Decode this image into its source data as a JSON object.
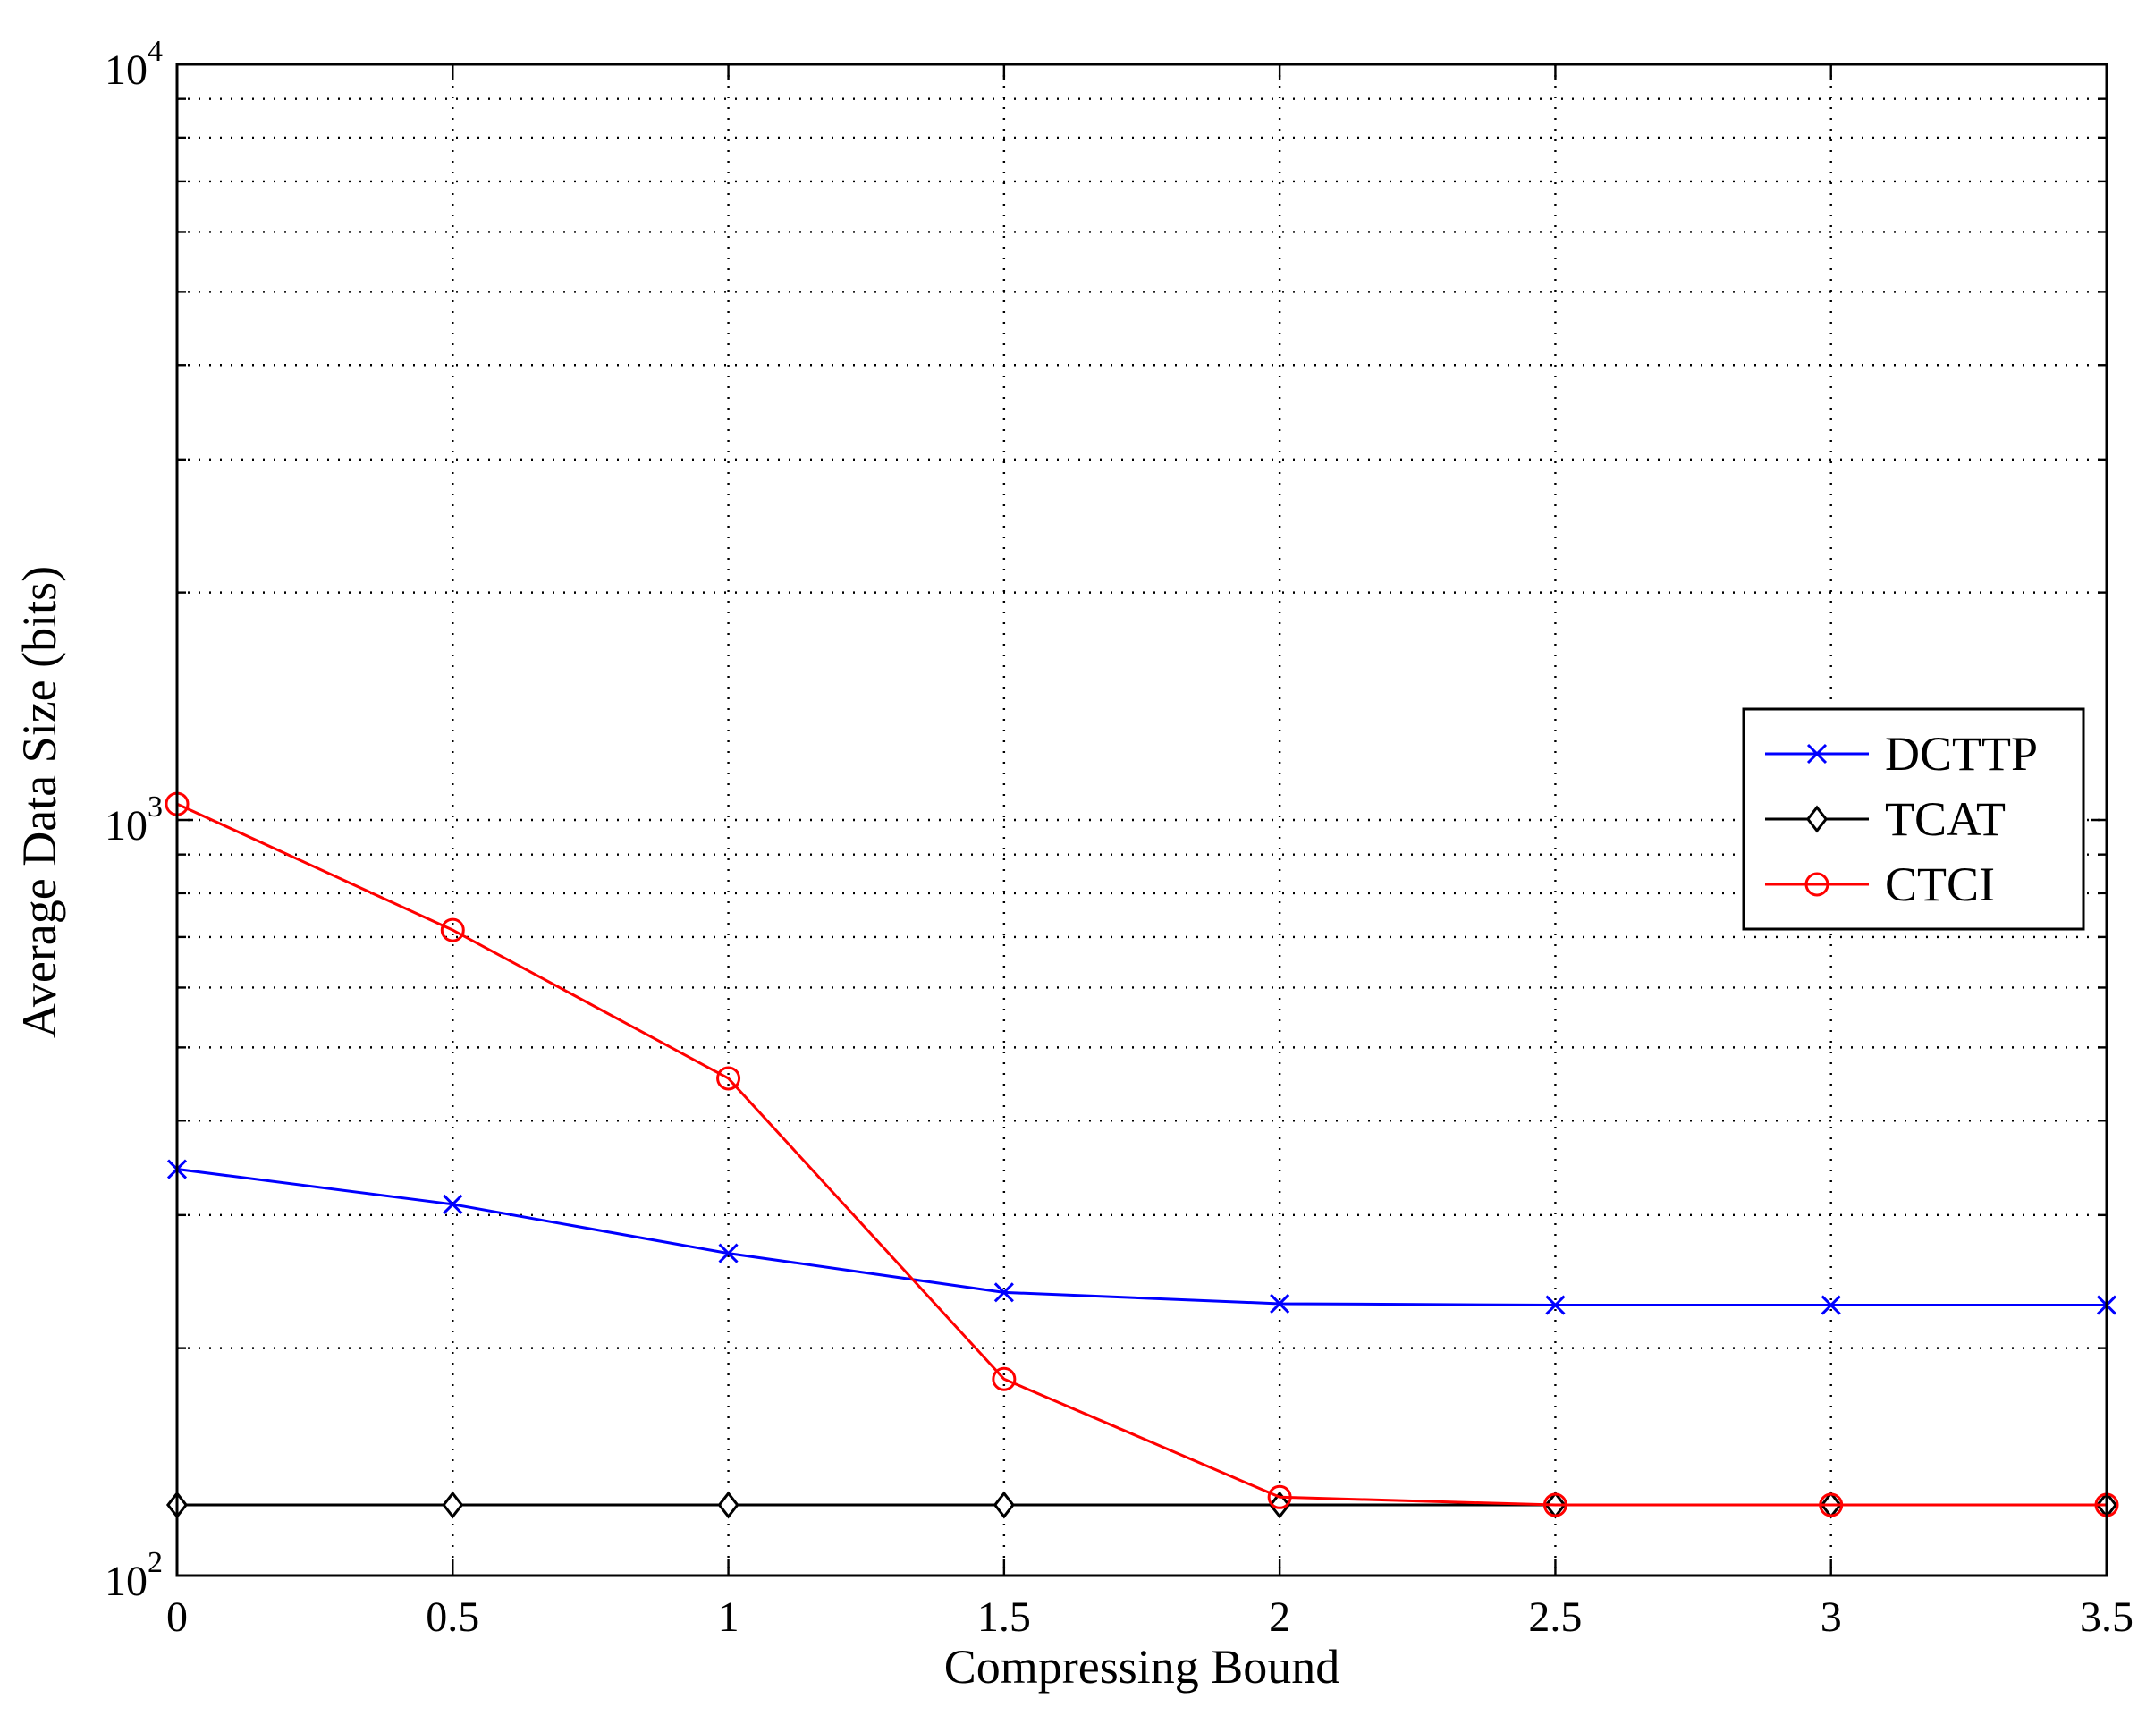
{
  "chart_data": {
    "type": "line",
    "title": "",
    "xlabel": "Compressing Bound",
    "ylabel": "Average Data Size (bits)",
    "xlim": [
      0,
      3.5
    ],
    "ylim": [
      100,
      10000
    ],
    "yscale": "log",
    "grid": true,
    "legend_position": "right",
    "x": [
      0,
      0.5,
      1,
      1.5,
      2,
      2.5,
      3,
      3.5
    ],
    "xtick_labels": [
      "0",
      "0.5",
      "1",
      "1.5",
      "2",
      "2.5",
      "3",
      "3.5"
    ],
    "ytick_labels": [
      {
        "base": "10",
        "exp": "2",
        "value": 100
      },
      {
        "base": "10",
        "exp": "3",
        "value": 1000
      },
      {
        "base": "10",
        "exp": "4",
        "value": 10000
      }
    ],
    "series": [
      {
        "name": "DCTTP",
        "color": "#0000ff",
        "marker": "x",
        "values": [
          345,
          310,
          267,
          237,
          229,
          228,
          228,
          228
        ]
      },
      {
        "name": "TCAT",
        "color": "#000000",
        "marker": "diamond",
        "values": [
          124,
          124,
          124,
          124,
          124,
          124,
          124,
          124
        ]
      },
      {
        "name": "CTCI",
        "color": "#ff0000",
        "marker": "circle",
        "values": [
          1050,
          715,
          455,
          182,
          127,
          124,
          124,
          124
        ]
      }
    ]
  }
}
